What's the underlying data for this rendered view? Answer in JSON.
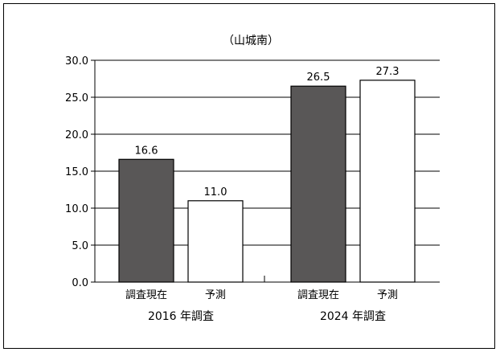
{
  "chart_data": {
    "type": "bar",
    "title": "（山城南）",
    "ylim": [
      0,
      30
    ],
    "yticks": [
      "0.0",
      "5.0",
      "10.0",
      "15.0",
      "20.0",
      "25.0",
      "30.0"
    ],
    "grid": true,
    "groups": [
      {
        "label": "2016 年調査",
        "bars": [
          {
            "category": "調査現在",
            "value": 16.6,
            "value_label": "16.6",
            "color": "#595757"
          },
          {
            "category": "予測",
            "value": 11.0,
            "value_label": "11.0",
            "color": "#ffffff"
          }
        ]
      },
      {
        "label": "2024 年調査",
        "bars": [
          {
            "category": "調査現在",
            "value": 26.5,
            "value_label": "26.5",
            "color": "#595757"
          },
          {
            "category": "予測",
            "value": 27.3,
            "value_label": "27.3",
            "color": "#ffffff"
          }
        ]
      }
    ]
  }
}
